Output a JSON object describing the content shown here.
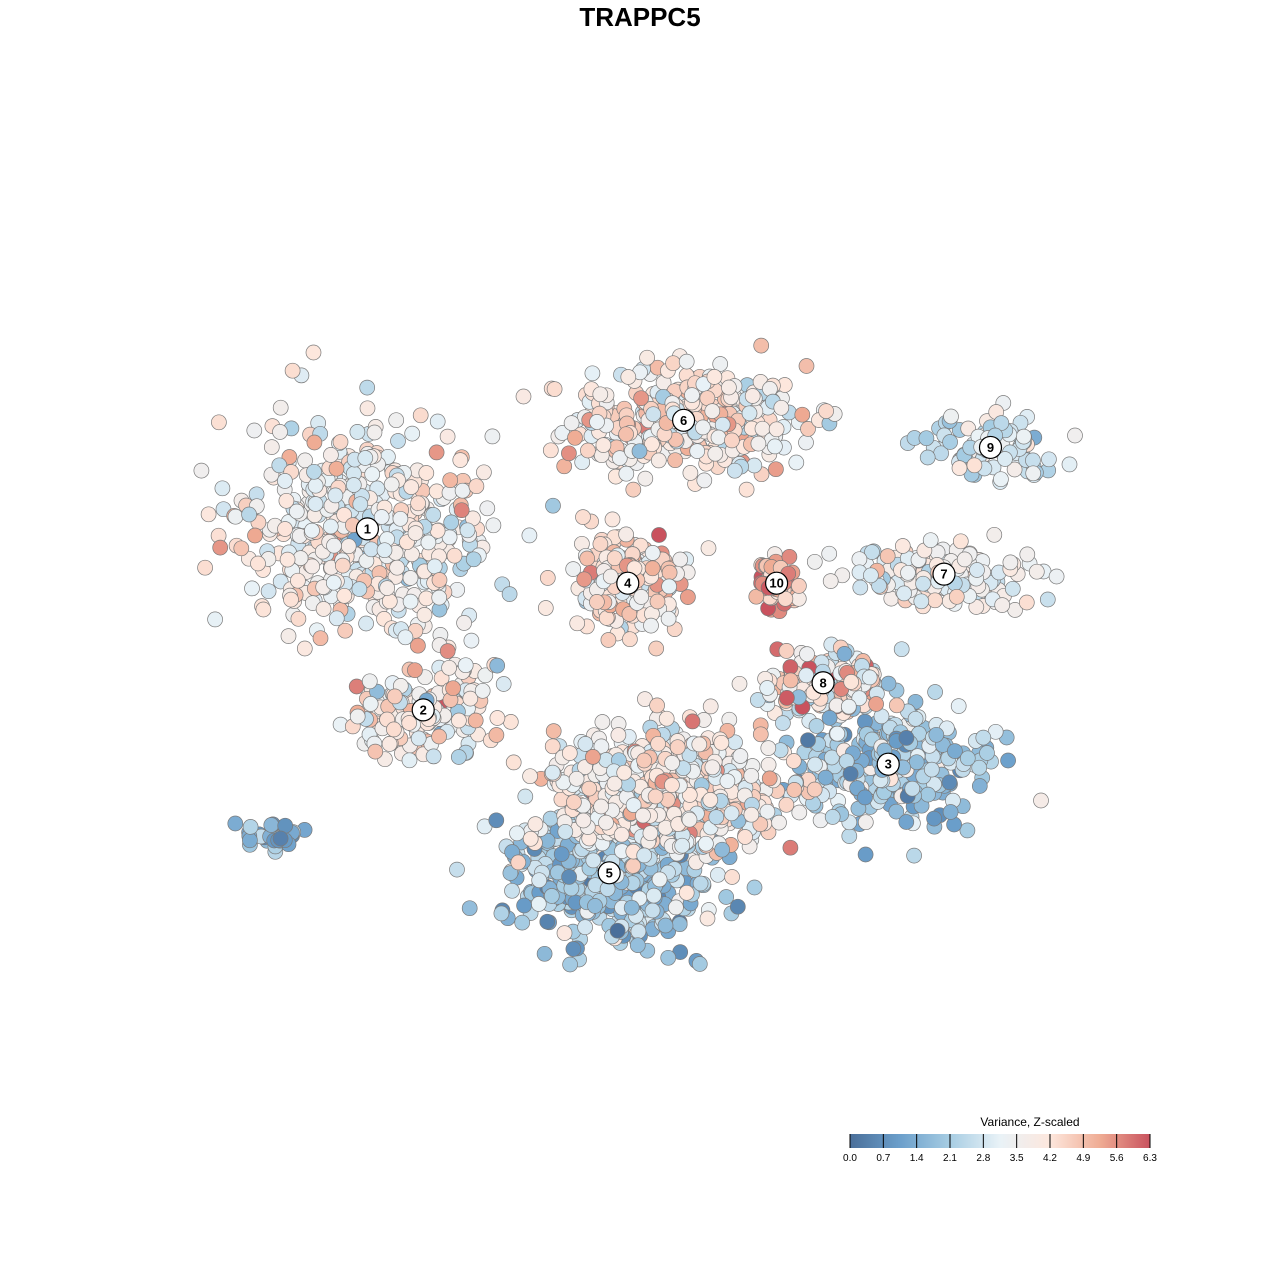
{
  "chart_data": {
    "type": "scatter",
    "title": "TRAPPC5",
    "xlabel": "",
    "ylabel": "",
    "grid": false,
    "colorbar": {
      "title": "Variance, Z-scaled",
      "ticks": [
        "0.0",
        "0.7",
        "1.4",
        "2.1",
        "2.8",
        "3.5",
        "4.2",
        "4.9",
        "5.6",
        "6.3"
      ],
      "range": [
        0.0,
        6.3
      ],
      "placement": "bottom-right",
      "colors": [
        "#4a6f9a",
        "#6b9fcb",
        "#a7cde3",
        "#e9f2f7",
        "#fde7dd",
        "#efac94",
        "#c9525e"
      ]
    },
    "clusters": [
      {
        "label": "1",
        "x": 0.18,
        "y": 0.62,
        "n": 520,
        "sx": 0.12,
        "sy": 0.11,
        "mean": 3.6,
        "sd": 0.75
      },
      {
        "label": "2",
        "x": 0.24,
        "y": 0.42,
        "n": 160,
        "sx": 0.07,
        "sy": 0.05,
        "mean": 3.7,
        "sd": 0.9
      },
      {
        "label": "3",
        "x": 0.74,
        "y": 0.36,
        "n": 330,
        "sx": 0.09,
        "sy": 0.06,
        "mean": 2.3,
        "sd": 0.8
      },
      {
        "label": "4",
        "x": 0.46,
        "y": 0.56,
        "n": 270,
        "sx": 0.05,
        "sy": 0.05,
        "mean": 4.1,
        "sd": 0.8
      },
      {
        "label": "5",
        "x": 0.44,
        "y": 0.24,
        "n": 560,
        "sx": 0.09,
        "sy": 0.07,
        "mean": 2.0,
        "sd": 0.8
      },
      {
        "label": "6",
        "x": 0.52,
        "y": 0.74,
        "n": 360,
        "sx": 0.12,
        "sy": 0.05,
        "mean": 3.9,
        "sd": 0.75
      },
      {
        "label": "7",
        "x": 0.8,
        "y": 0.57,
        "n": 170,
        "sx": 0.09,
        "sy": 0.03,
        "mean": 3.5,
        "sd": 0.6
      },
      {
        "label": "8",
        "x": 0.67,
        "y": 0.45,
        "n": 180,
        "sx": 0.06,
        "sy": 0.03,
        "mean": 4.0,
        "sd": 1.2
      },
      {
        "label": "9",
        "x": 0.85,
        "y": 0.71,
        "n": 100,
        "sx": 0.06,
        "sy": 0.03,
        "mean": 2.9,
        "sd": 0.6
      },
      {
        "label": "10",
        "x": 0.62,
        "y": 0.56,
        "n": 80,
        "sx": 0.02,
        "sy": 0.025,
        "mean": 5.4,
        "sd": 0.8
      },
      {
        "label": "",
        "x": 0.5,
        "y": 0.33,
        "n": 620,
        "sx": 0.11,
        "sy": 0.06,
        "mean": 3.8,
        "sd": 0.8
      },
      {
        "label": "",
        "x": 0.08,
        "y": 0.28,
        "n": 28,
        "sx": 0.03,
        "sy": 0.015,
        "mean": 1.3,
        "sd": 0.6
      }
    ]
  }
}
